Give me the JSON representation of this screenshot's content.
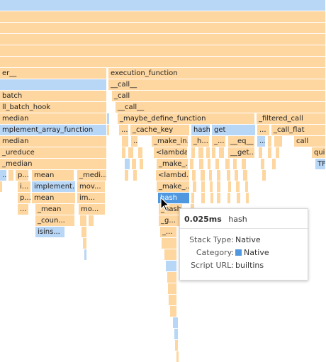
{
  "flame": {
    "native_color": "#b8d6f6",
    "js_color": "#fdd6a0",
    "selected_color": "#4f98e0",
    "labels": {
      "r6a": "er__",
      "r6b": "execution_function",
      "r7b": "__call__",
      "r8a": "batch",
      "r8b": "_call",
      "r9a": "ll_batch_hook",
      "r9b": "__call__",
      "r10a": "median",
      "r10b": "_maybe_define_function",
      "r10c": "_filtered_call",
      "r11a": "mplement_array_function",
      "r11b": "...",
      "r11c": "_cache_key",
      "r11d": "hash",
      "r11e": "get",
      "r11f": "...",
      "r11g": "_call_flat",
      "r12a": "median",
      "r12b": "...",
      "r12c": "_make_in...",
      "r12d": "_h...",
      "r12e": "_...",
      "r12f": "__eq__",
      "r12g": "...",
      "r12h": "call",
      "r13a": "_ureduce",
      "r13b": "<lambda>",
      "r13c": "_...",
      "r13d": "__get...",
      "r13e": "quic",
      "r14a": "_median",
      "r14b": "_make_...",
      "r14c": "TF",
      "r15a": "...",
      "r15b": "p...",
      "r15c": "mean",
      "r15d": "_medi...",
      "r15e": "<lambd...",
      "r16a": "i...",
      "r16b": "implement...",
      "r16c": "mov...",
      "r16d": "_make_...",
      "r17a": "p...",
      "r17b": "mean",
      "r17c": "im...",
      "r17d": "hash",
      "r18a": "...",
      "r18b": "_mean",
      "r18c": "mo...",
      "r18d": "_hash",
      "r19a": "_coun...",
      "r19b": "_g...",
      "r20a": "isins...",
      "r20b": "_..."
    }
  },
  "tooltip": {
    "duration": "0.025ms",
    "name": "hash",
    "stack_type_label": "Stack Type:",
    "stack_type": "Native",
    "category_label": "Category:",
    "category": "Native",
    "script_url_label": "Script URL:",
    "script_url": "builtins"
  }
}
